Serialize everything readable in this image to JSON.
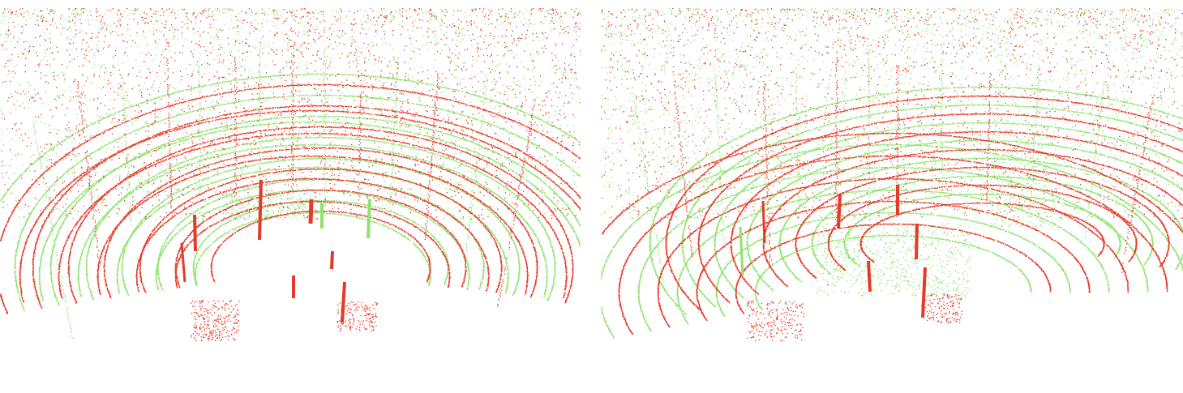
{
  "figure": {
    "panels": [
      {
        "id": "left",
        "content": "lidar-point-cloud-before-registration"
      },
      {
        "id": "right",
        "content": "lidar-point-cloud-after-registration"
      }
    ],
    "colors": {
      "source_points": "#e53a2a",
      "target_points": "#8fe36f",
      "background": "#ffffff"
    }
  }
}
